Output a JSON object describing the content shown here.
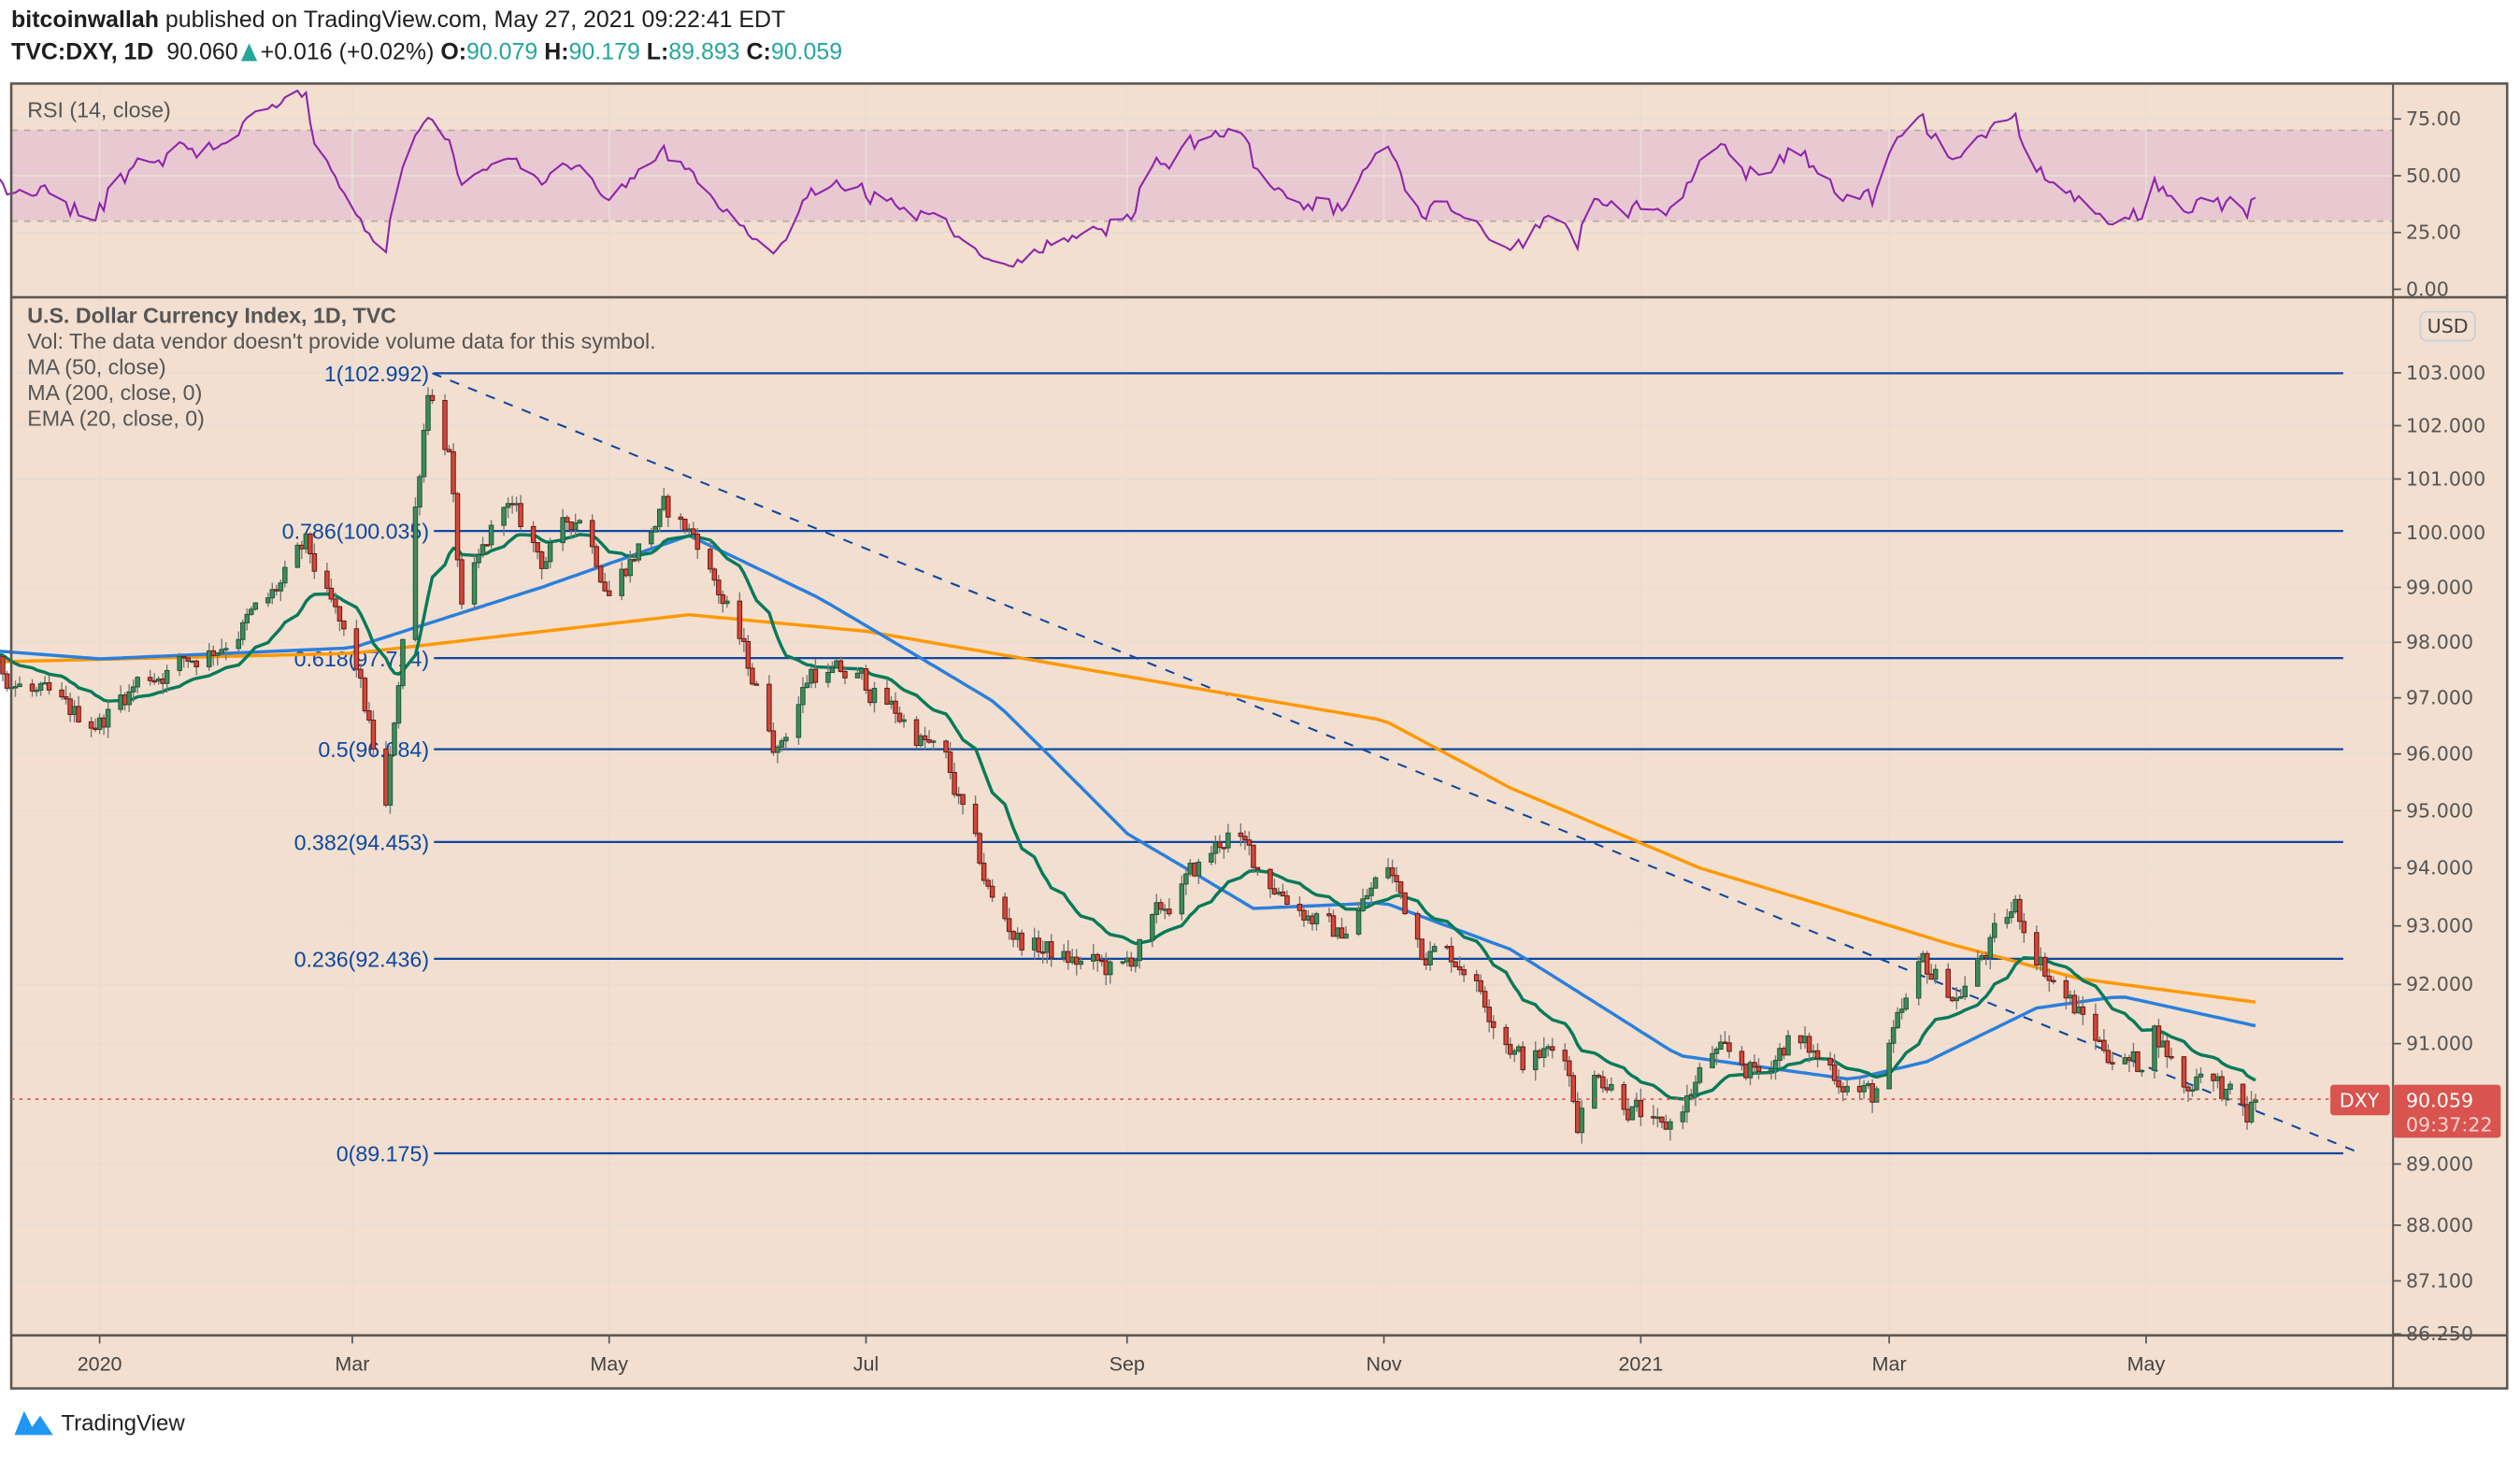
{
  "header": {
    "author": "bitcoinwallah",
    "published": " published on TradingView.com, May 27, 2021 09:22:41 EDT",
    "symbol": "TVC:DXY, 1D",
    "last": "90.060",
    "change": "+0.016 (+0.02%)",
    "o_label": "O:",
    "o": "90.079",
    "h_label": "H:",
    "h": "90.179",
    "l_label": "L:",
    "l": "89.893",
    "c_label": "C:",
    "c": "90.059"
  },
  "legend": {
    "rsi": "RSI (14, close)",
    "title": "U.S. Dollar Currency Index, 1D, TVC",
    "vol": "Vol: The data vendor doesn't provide volume data for this symbol.",
    "ma50": "MA (50, close)",
    "ma200": "MA (200, close, 0)",
    "ema20": "EMA (20, close, 0)"
  },
  "currency_badge": "USD",
  "price_tag": {
    "symbol": "DXY",
    "price": "90.059",
    "countdown": "09:37:22"
  },
  "brand": "TradingView",
  "colors": {
    "bg": "#f2dfcf",
    "up": "#3e8a5c",
    "down": "#d4473a",
    "ma50": "#2a7fdc",
    "ma200": "#ff9800",
    "ema20": "#087a5a",
    "rsi": "#8e24aa",
    "fib": "#0d47a1",
    "price_line": "#d9534f"
  },
  "chart_data": {
    "type": "candlestick",
    "title": "U.S. Dollar Currency Index, 1D, TVC",
    "scale": "log",
    "price_ticks": [
      "103.000",
      "102.000",
      "101.000",
      "100.000",
      "99.000",
      "98.000",
      "97.000",
      "96.000",
      "95.000",
      "94.000",
      "93.000",
      "92.000",
      "91.000",
      "89.000",
      "88.000",
      "87.100",
      "86.250"
    ],
    "rsi_ticks": [
      "75.00",
      "50.00",
      "25.00",
      "0.00"
    ],
    "rsi_band": [
      30,
      70
    ],
    "time_ticks": [
      {
        "label": "2020",
        "date": "2020-01-01"
      },
      {
        "label": "Mar",
        "date": "2020-03-01"
      },
      {
        "label": "May",
        "date": "2020-05-01"
      },
      {
        "label": "Jul",
        "date": "2020-07-01"
      },
      {
        "label": "Sep",
        "date": "2020-09-01"
      },
      {
        "label": "Nov",
        "date": "2020-11-01"
      },
      {
        "label": "2021",
        "date": "2021-01-01"
      },
      {
        "label": "Mar",
        "date": "2021-03-01"
      },
      {
        "label": "May",
        "date": "2021-05-01"
      }
    ],
    "fib_levels": [
      {
        "label": "1(102.992)",
        "value": 102.992
      },
      {
        "label": "0.786(100.035)",
        "value": 100.035
      },
      {
        "label": "0.618(97.714)",
        "value": 97.714
      },
      {
        "label": "0.5(96.084)",
        "value": 96.084
      },
      {
        "label": "0.382(94.453)",
        "value": 94.453
      },
      {
        "label": "0.236(92.436)",
        "value": 92.436
      },
      {
        "label": "0(89.175)",
        "value": 89.175
      }
    ],
    "trendline": [
      {
        "date": "2020-03-20",
        "value": 102.992
      },
      {
        "date": "2021-06-21",
        "value": 89.175
      }
    ],
    "last_price": 90.059,
    "close_keypoints": [
      [
        "2019-11-11",
        97.4
      ],
      [
        "2019-11-25",
        98.0
      ],
      [
        "2019-12-10",
        97.4
      ],
      [
        "2019-12-24",
        96.7
      ],
      [
        "2020-01-01",
        96.6
      ],
      [
        "2020-01-10",
        97.3
      ],
      [
        "2020-01-28",
        97.9
      ],
      [
        "2020-02-10",
        98.7
      ],
      [
        "2020-02-19",
        99.7
      ],
      [
        "2020-03-02",
        97.5
      ],
      [
        "2020-03-09",
        95.0
      ],
      [
        "2020-03-19",
        102.8
      ],
      [
        "2020-03-24",
        101.5
      ],
      [
        "2020-03-27",
        98.5
      ],
      [
        "2020-04-06",
        100.6
      ],
      [
        "2020-04-15",
        99.5
      ],
      [
        "2020-04-24",
        100.4
      ],
      [
        "2020-05-01",
        99.0
      ],
      [
        "2020-05-14",
        100.4
      ],
      [
        "2020-05-22",
        99.9
      ],
      [
        "2020-06-01",
        98.0
      ],
      [
        "2020-06-10",
        96.1
      ],
      [
        "2020-06-18",
        97.5
      ],
      [
        "2020-06-30",
        97.3
      ],
      [
        "2020-07-10",
        96.6
      ],
      [
        "2020-07-20",
        95.8
      ],
      [
        "2020-07-31",
        93.4
      ],
      [
        "2020-08-06",
        92.8
      ],
      [
        "2020-08-18",
        92.4
      ],
      [
        "2020-08-31",
        92.2
      ],
      [
        "2020-09-10",
        93.3
      ],
      [
        "2020-09-25",
        94.6
      ],
      [
        "2020-10-05",
        93.8
      ],
      [
        "2020-10-21",
        92.8
      ],
      [
        "2020-11-02",
        94.0
      ],
      [
        "2020-11-10",
        92.7
      ],
      [
        "2020-11-20",
        92.4
      ],
      [
        "2020-12-04",
        90.7
      ],
      [
        "2020-12-14",
        90.9
      ],
      [
        "2020-12-17",
        89.8
      ],
      [
        "2020-12-22",
        90.6
      ],
      [
        "2021-01-06",
        89.4
      ],
      [
        "2021-01-18",
        90.8
      ],
      [
        "2021-01-29",
        90.5
      ],
      [
        "2021-02-05",
        91.1
      ],
      [
        "2021-02-25",
        90.1
      ],
      [
        "2021-03-09",
        92.3
      ],
      [
        "2021-03-17",
        91.8
      ],
      [
        "2021-03-31",
        93.3
      ],
      [
        "2021-04-08",
        92.2
      ],
      [
        "2021-04-20",
        91.0
      ],
      [
        "2021-04-29",
        90.6
      ],
      [
        "2021-05-03",
        91.3
      ],
      [
        "2021-05-11",
        90.2
      ],
      [
        "2021-05-14",
        90.7
      ],
      [
        "2021-05-25",
        89.7
      ],
      [
        "2021-05-27",
        90.06
      ]
    ],
    "ma200_keypoints": [
      [
        "2019-11-11",
        97.6
      ],
      [
        "2020-03-01",
        97.8
      ],
      [
        "2020-05-20",
        98.5
      ],
      [
        "2020-07-01",
        98.2
      ],
      [
        "2020-09-15",
        97.2
      ],
      [
        "2020-11-01",
        96.6
      ],
      [
        "2020-12-01",
        95.4
      ],
      [
        "2021-01-15",
        94.0
      ],
      [
        "2021-03-15",
        92.7
      ],
      [
        "2021-04-15",
        92.1
      ],
      [
        "2021-05-27",
        91.7
      ]
    ],
    "ma50_keypoints": [
      [
        "2019-11-11",
        98.0
      ],
      [
        "2020-01-01",
        97.7
      ],
      [
        "2020-03-01",
        97.9
      ],
      [
        "2020-04-15",
        99.0
      ],
      [
        "2020-05-20",
        99.95
      ],
      [
        "2020-06-20",
        98.8
      ],
      [
        "2020-08-01",
        96.9
      ],
      [
        "2020-09-01",
        94.6
      ],
      [
        "2020-10-01",
        93.3
      ],
      [
        "2020-11-01",
        93.4
      ],
      [
        "2020-12-01",
        92.6
      ],
      [
        "2021-01-10",
        90.8
      ],
      [
        "2021-02-20",
        90.4
      ],
      [
        "2021-03-10",
        90.7
      ],
      [
        "2021-04-05",
        91.6
      ],
      [
        "2021-04-25",
        91.8
      ],
      [
        "2021-05-27",
        91.3
      ]
    ]
  }
}
